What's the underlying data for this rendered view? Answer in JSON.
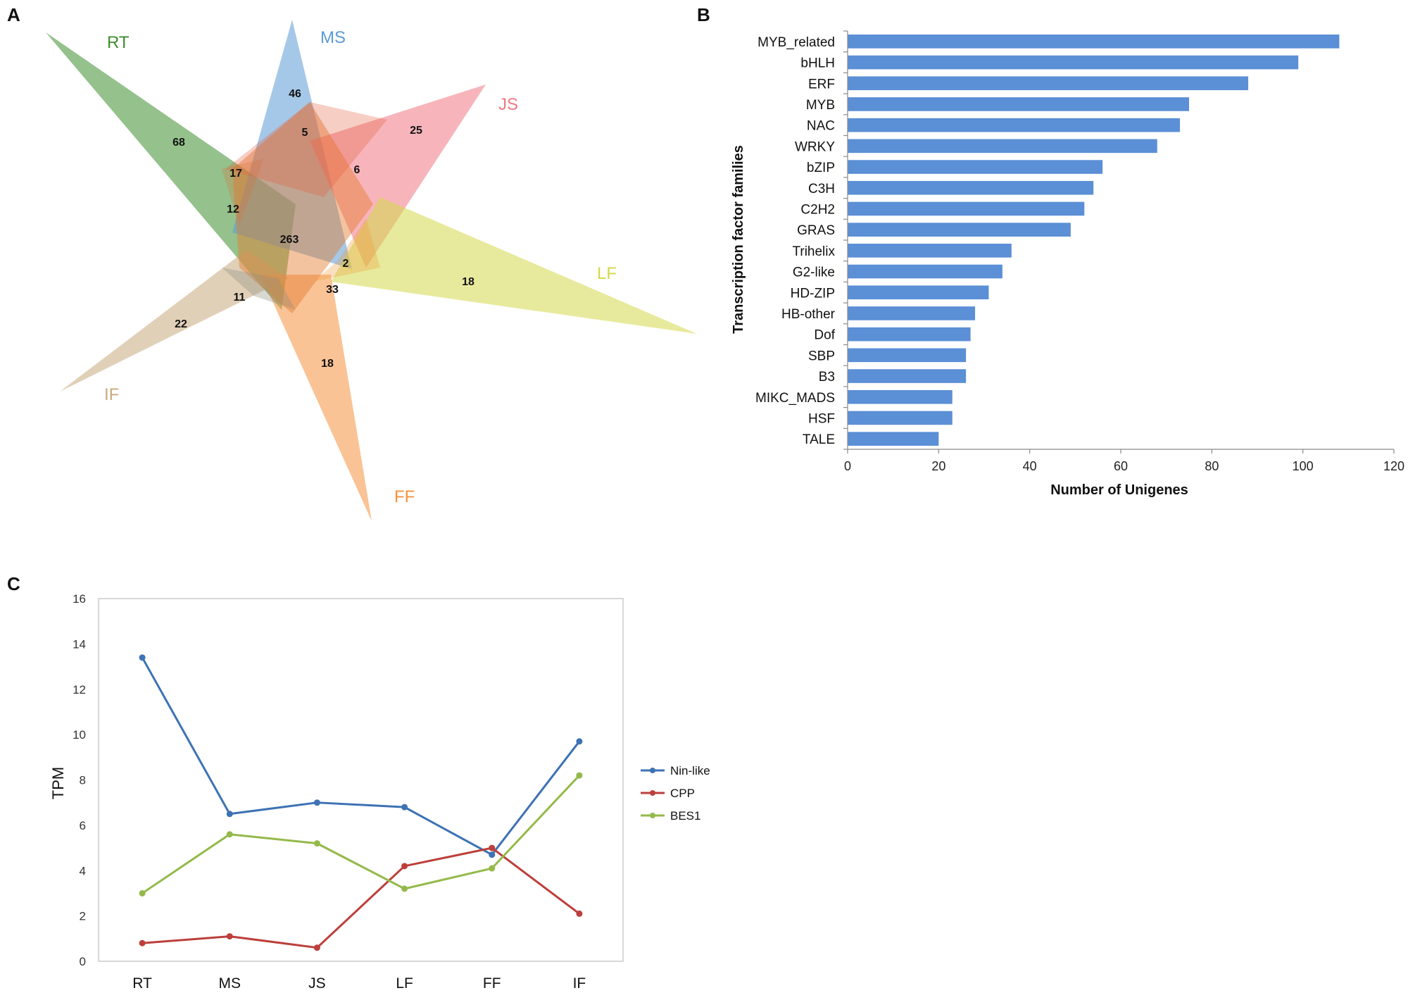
{
  "panels": {
    "a": "A",
    "b": "B",
    "c": "C"
  },
  "chart_data": [
    {
      "panel": "A",
      "type": "venn",
      "sets": [
        {
          "name": "RT",
          "color": "#3e8e2e"
        },
        {
          "name": "MS",
          "color": "#5b9bd5"
        },
        {
          "name": "JS",
          "color": "#f07884"
        },
        {
          "name": "LF",
          "color": "#d4d84a"
        },
        {
          "name": "FF",
          "color": "#f5923e"
        },
        {
          "name": "IF",
          "color": "#c8a97e"
        }
      ],
      "region_counts": [
        "68",
        "46",
        "25",
        "18",
        "18",
        "22",
        "5",
        "6",
        "17",
        "12",
        "263",
        "2",
        "33",
        "11"
      ]
    },
    {
      "panel": "B",
      "type": "bar",
      "orientation": "horizontal",
      "categories": [
        "MYB_related",
        "bHLH",
        "ERF",
        "MYB",
        "NAC",
        "WRKY",
        "bZIP",
        "C3H",
        "C2H2",
        "GRAS",
        "Trihelix",
        "G2-like",
        "HD-ZIP",
        "HB-other",
        "Dof",
        "SBP",
        "B3",
        "MIKC_MADS",
        "HSF",
        "TALE"
      ],
      "values": [
        108,
        99,
        88,
        75,
        73,
        68,
        56,
        54,
        52,
        49,
        36,
        34,
        31,
        28,
        27,
        26,
        26,
        23,
        23,
        20
      ],
      "xlabel": "Number of Unigenes",
      "ylabel": "Transcription factor families",
      "xlim": [
        0,
        120
      ],
      "xticks": [
        "0",
        "20",
        "40",
        "60",
        "80",
        "100",
        "120"
      ],
      "bar_color": "#5b8fd6"
    },
    {
      "panel": "C",
      "type": "line",
      "categories": [
        "RT",
        "MS",
        "JS",
        "LF",
        "FF",
        "IF"
      ],
      "series": [
        {
          "name": "Nin-like",
          "color": "#3d72b4",
          "values": [
            13.4,
            6.5,
            7.0,
            6.8,
            4.7,
            9.7
          ]
        },
        {
          "name": "CPP",
          "color": "#bc3f3b",
          "values": [
            0.8,
            1.1,
            0.6,
            4.2,
            5.0,
            2.1
          ]
        },
        {
          "name": "BES1",
          "color": "#94b94a",
          "values": [
            3.0,
            5.6,
            5.2,
            3.2,
            4.1,
            8.2
          ]
        }
      ],
      "ylabel": "TPM",
      "ylim": [
        0,
        16
      ],
      "yticks": [
        "0",
        "2",
        "4",
        "6",
        "8",
        "10",
        "12",
        "14",
        "16"
      ],
      "legend_position": "right"
    }
  ]
}
